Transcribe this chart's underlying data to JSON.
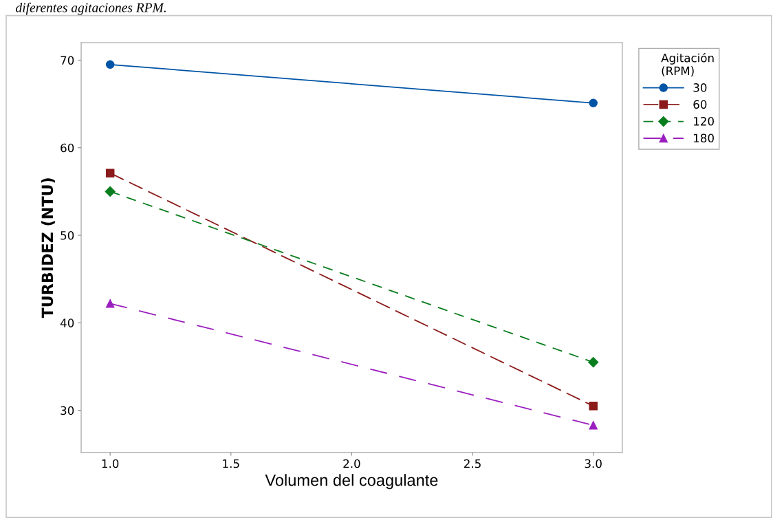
{
  "chart_data": {
    "type": "line",
    "annotations": [
      "diferentes agitaciones RPM."
    ],
    "xlabel": "Volumen del coagulante",
    "ylabel": "TURBIDEZ (NTU)",
    "legend_title": "Agitación\n(RPM)",
    "x": [
      1.0,
      3.0
    ],
    "series": [
      {
        "name": "30",
        "color": "#0054a6",
        "values": [
          69.5,
          65.1
        ],
        "marker": "circle",
        "line_style": "solid"
      },
      {
        "name": "60",
        "color": "#8b1a1a",
        "values": [
          57.1,
          30.5
        ],
        "marker": "square",
        "line_style": "dashed"
      },
      {
        "name": "120",
        "color": "#0a7d1e",
        "values": [
          55.0,
          35.5
        ],
        "marker": "diamond",
        "line_style": "dashed"
      },
      {
        "name": "180",
        "color": "#9b1fbf",
        "values": [
          42.2,
          28.3
        ],
        "marker": "triangle",
        "line_style": "dashed"
      }
    ],
    "xlim": [
      0.88,
      3.12
    ],
    "xticks": [
      {
        "value": 1.0,
        "label": "1.0"
      },
      {
        "value": 1.5,
        "label": "1.5"
      },
      {
        "value": 2.0,
        "label": "2.0"
      },
      {
        "value": 2.5,
        "label": "2.5"
      },
      {
        "value": 3.0,
        "label": "3.0"
      }
    ],
    "ylim": [
      25.2,
      72.0
    ],
    "yticks": [
      30,
      40,
      50,
      60,
      70
    ],
    "grid": false,
    "legend": "top right"
  }
}
